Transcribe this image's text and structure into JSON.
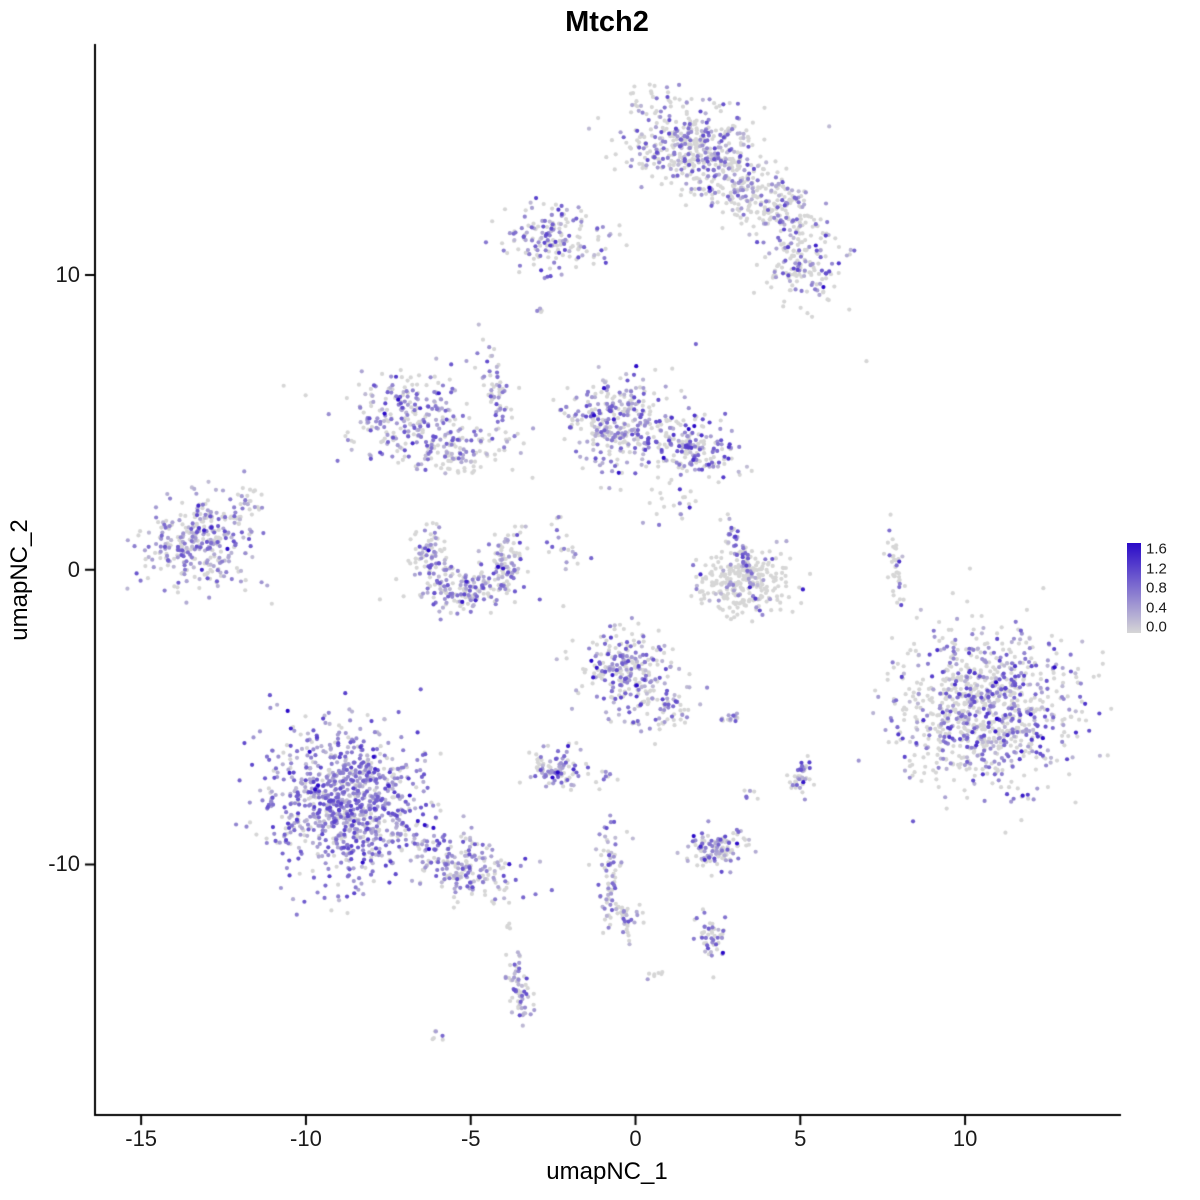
{
  "chart_data": {
    "type": "scatter",
    "subtype": "umap-feature-plot",
    "title": "Mtch2",
    "xlabel": "umapNC_1",
    "ylabel": "umapNC_2",
    "x_domain": [
      -16.4,
      14.7
    ],
    "y_domain": [
      -18.5,
      17.8
    ],
    "x_ticks": [
      {
        "value": -15,
        "label": "-15"
      },
      {
        "value": -10,
        "label": "-10"
      },
      {
        "value": -5,
        "label": "-5"
      },
      {
        "value": 0,
        "label": "0"
      },
      {
        "value": 5,
        "label": "5"
      },
      {
        "value": 10,
        "label": "10"
      }
    ],
    "y_ticks": [
      {
        "value": 10,
        "label": "10"
      },
      {
        "value": 0,
        "label": "0"
      },
      {
        "value": -10,
        "label": "-10"
      }
    ],
    "grid": false,
    "axis_color": "#000000",
    "point_radius": 2.1,
    "seed": 42,
    "legend": {
      "position": "right",
      "min": 0.0,
      "max": 1.6,
      "ticks": [
        {
          "value": 1.6,
          "label": "1.6"
        },
        {
          "value": 1.2,
          "label": "1.2"
        },
        {
          "value": 0.8,
          "label": "0.8"
        },
        {
          "value": 0.4,
          "label": "0.4"
        },
        {
          "value": 0.0,
          "label": "0.0"
        }
      ],
      "color_low": "#D6D6D6",
      "color_high": "#2A0AC8"
    },
    "clusters": [
      {
        "cx": 1.6,
        "cy": 14.4,
        "sx": 1.05,
        "sy": 0.75,
        "rot": -10,
        "n": 420,
        "frac": 0.45,
        "hi": 0.9
      },
      {
        "cx": 3.0,
        "cy": 13.0,
        "sx": 0.8,
        "sy": 0.6,
        "rot": -35,
        "n": 160,
        "frac": 0.35,
        "hi": 0.8
      },
      {
        "cx": 4.4,
        "cy": 12.3,
        "sx": 0.7,
        "sy": 0.5,
        "rot": -30,
        "n": 130,
        "frac": 0.35,
        "hi": 0.9
      },
      {
        "cx": 5.1,
        "cy": 10.3,
        "sx": 0.55,
        "sy": 0.75,
        "rot": 15,
        "n": 160,
        "frac": 0.4,
        "hi": 1.0
      },
      {
        "cx": -2.4,
        "cy": 11.3,
        "sx": 0.75,
        "sy": 0.55,
        "rot": 0,
        "n": 170,
        "frac": 0.5,
        "hi": 1.0
      },
      {
        "cx": -2.9,
        "cy": 8.8,
        "sx": 0.1,
        "sy": 0.15,
        "rot": 0,
        "n": 4,
        "frac": 0.5,
        "hi": 0.8
      },
      {
        "cx": -4.2,
        "cy": 5.9,
        "sx": 0.22,
        "sy": 1.05,
        "rot": 12,
        "n": 70,
        "frac": 0.5,
        "hi": 0.9
      },
      {
        "cx": -7.0,
        "cy": 5.3,
        "sx": 0.85,
        "sy": 0.65,
        "rot": 25,
        "n": 230,
        "frac": 0.6,
        "hi": 0.9
      },
      {
        "cx": -5.5,
        "cy": 4.0,
        "sx": 0.6,
        "sy": 0.45,
        "rot": 20,
        "n": 110,
        "frac": 0.5,
        "hi": 0.8
      },
      {
        "cx": -0.6,
        "cy": 5.1,
        "sx": 0.8,
        "sy": 0.75,
        "rot": 0,
        "n": 300,
        "frac": 0.55,
        "hi": 0.9
      },
      {
        "cx": 1.7,
        "cy": 4.2,
        "sx": 0.75,
        "sy": 0.5,
        "rot": -15,
        "n": 190,
        "frac": 0.55,
        "hi": 1.1
      },
      {
        "cx": 1.2,
        "cy": 2.3,
        "sx": 0.4,
        "sy": 0.55,
        "rot": 0,
        "n": 22,
        "frac": 0.2,
        "hi": 0.7
      },
      {
        "cx": -13.3,
        "cy": 0.9,
        "sx": 0.85,
        "sy": 0.8,
        "rot": 0,
        "n": 320,
        "frac": 0.6,
        "hi": 0.9
      },
      {
        "cx": -11.8,
        "cy": 2.3,
        "sx": 0.25,
        "sy": 0.35,
        "rot": -30,
        "n": 25,
        "frac": 0.4,
        "hi": 0.7
      },
      {
        "cx": -6.2,
        "cy": 0.5,
        "sx": 0.3,
        "sy": 0.55,
        "rot": 10,
        "n": 80,
        "frac": 0.55,
        "hi": 0.9
      },
      {
        "cx": -5.1,
        "cy": -0.7,
        "sx": 0.75,
        "sy": 0.33,
        "rot": 0,
        "n": 150,
        "frac": 0.55,
        "hi": 0.9
      },
      {
        "cx": -3.9,
        "cy": 0.2,
        "sx": 0.3,
        "sy": 0.55,
        "rot": -10,
        "n": 90,
        "frac": 0.55,
        "hi": 0.9
      },
      {
        "cx": -2.2,
        "cy": 0.9,
        "sx": 0.25,
        "sy": 0.5,
        "rot": 15,
        "n": 22,
        "frac": 0.4,
        "hi": 0.8
      },
      {
        "cx": 3.3,
        "cy": -0.4,
        "sx": 0.7,
        "sy": 0.55,
        "rot": 0,
        "n": 270,
        "frac": 0.12,
        "hi": 0.7
      },
      {
        "cx": 3.2,
        "cy": 0.5,
        "sx": 0.14,
        "sy": 0.85,
        "rot": 18,
        "n": 55,
        "frac": 0.8,
        "hi": 1.1
      },
      {
        "cx": 7.9,
        "cy": 0.2,
        "sx": 0.12,
        "sy": 0.6,
        "rot": 5,
        "n": 40,
        "frac": 0.3,
        "hi": 0.9
      },
      {
        "cx": 10.6,
        "cy": -4.6,
        "sx": 1.35,
        "sy": 1.3,
        "rot": -20,
        "n": 950,
        "frac": 0.45,
        "hi": 1.1
      },
      {
        "cx": -0.3,
        "cy": -3.5,
        "sx": 0.7,
        "sy": 0.8,
        "rot": 10,
        "n": 270,
        "frac": 0.5,
        "hi": 1.0
      },
      {
        "cx": 1.0,
        "cy": -4.8,
        "sx": 0.35,
        "sy": 0.3,
        "rot": 0,
        "n": 40,
        "frac": 0.5,
        "hi": 0.9
      },
      {
        "cx": 2.8,
        "cy": -5.1,
        "sx": 0.18,
        "sy": 0.12,
        "rot": 0,
        "n": 14,
        "frac": 0.7,
        "hi": 0.9
      },
      {
        "cx": -2.3,
        "cy": -6.8,
        "sx": 0.45,
        "sy": 0.33,
        "rot": 0,
        "n": 90,
        "frac": 0.6,
        "hi": 0.9
      },
      {
        "cx": -0.9,
        "cy": -7.1,
        "sx": 0.15,
        "sy": 0.15,
        "rot": 0,
        "n": 8,
        "frac": 0.4,
        "hi": 0.7
      },
      {
        "cx": 5.0,
        "cy": -7.0,
        "sx": 0.2,
        "sy": 0.3,
        "rot": 0,
        "n": 40,
        "frac": 0.6,
        "hi": 1.0
      },
      {
        "cx": 3.5,
        "cy": -7.7,
        "sx": 0.12,
        "sy": 0.12,
        "rot": 0,
        "n": 6,
        "frac": 0.5,
        "hi": 0.9
      },
      {
        "cx": -8.7,
        "cy": -7.9,
        "sx": 1.15,
        "sy": 1.25,
        "rot": 15,
        "n": 950,
        "frac": 0.78,
        "hi": 1.0
      },
      {
        "cx": -5.2,
        "cy": -10.1,
        "sx": 0.85,
        "sy": 0.5,
        "rot": -25,
        "n": 200,
        "frac": 0.6,
        "hi": 0.9
      },
      {
        "cx": -0.75,
        "cy": -10.2,
        "sx": 0.2,
        "sy": 0.95,
        "rot": 0,
        "n": 60,
        "frac": 0.55,
        "hi": 0.9
      },
      {
        "cx": -0.35,
        "cy": -11.7,
        "sx": 0.3,
        "sy": 0.4,
        "rot": 0,
        "n": 45,
        "frac": 0.5,
        "hi": 0.9
      },
      {
        "cx": 2.45,
        "cy": -9.5,
        "sx": 0.45,
        "sy": 0.32,
        "rot": 0,
        "n": 120,
        "frac": 0.6,
        "hi": 0.9
      },
      {
        "cx": 2.35,
        "cy": -12.5,
        "sx": 0.26,
        "sy": 0.36,
        "rot": 0,
        "n": 50,
        "frac": 0.55,
        "hi": 0.9
      },
      {
        "cx": -3.5,
        "cy": -14.2,
        "sx": 0.2,
        "sy": 0.65,
        "rot": 8,
        "n": 60,
        "frac": 0.6,
        "hi": 0.9
      },
      {
        "cx": -3.9,
        "cy": -12.1,
        "sx": 0.1,
        "sy": 0.1,
        "rot": 0,
        "n": 4,
        "frac": 0.4,
        "hi": 0.6
      },
      {
        "cx": 0.6,
        "cy": -13.8,
        "sx": 0.15,
        "sy": 0.12,
        "rot": 0,
        "n": 7,
        "frac": 0.3,
        "hi": 0.6
      },
      {
        "cx": -6.0,
        "cy": -15.9,
        "sx": 0.15,
        "sy": 0.1,
        "rot": 0,
        "n": 6,
        "frac": 0.5,
        "hi": 0.9
      },
      {
        "cx": 6.9,
        "cy": 7.0,
        "sx": 0.05,
        "sy": 0.05,
        "rot": 0,
        "n": 1,
        "frac": 0.0,
        "hi": 0.0
      },
      {
        "cx": -10.6,
        "cy": 6.3,
        "sx": 0.05,
        "sy": 0.05,
        "rot": 0,
        "n": 1,
        "frac": 0.0,
        "hi": 0.0
      }
    ]
  }
}
